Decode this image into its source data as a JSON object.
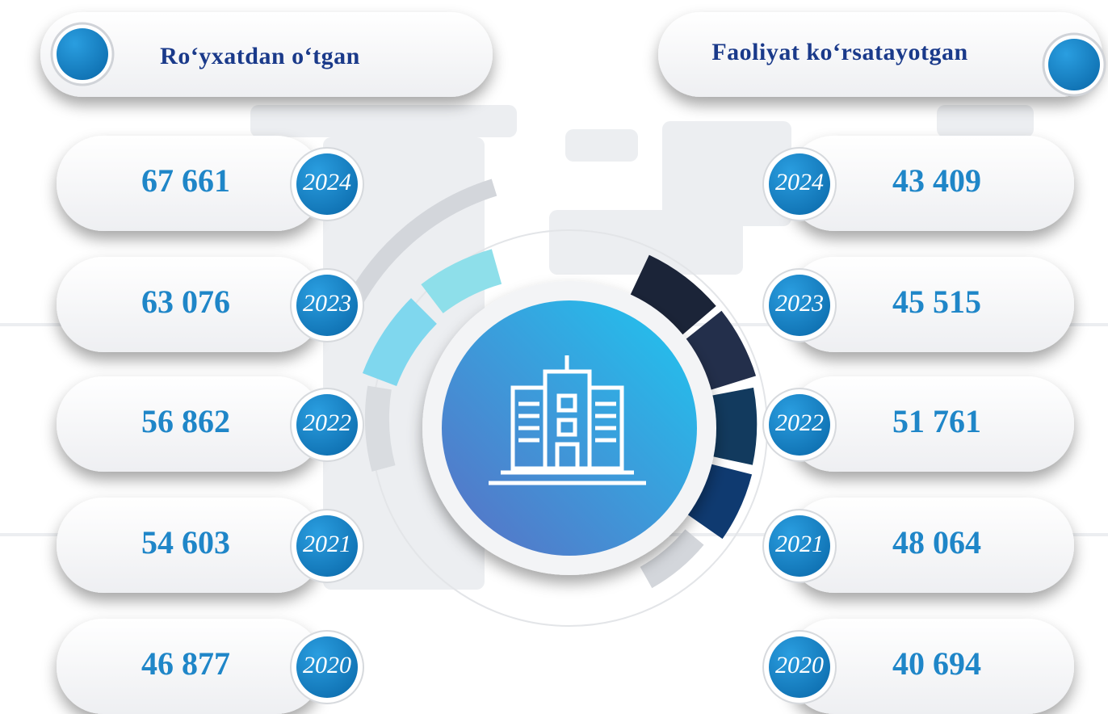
{
  "left": {
    "title": "Ro‘yxatdan o‘tgan",
    "items": [
      {
        "value": "67 661",
        "year": "2024"
      },
      {
        "value": "63 076",
        "year": "2023"
      },
      {
        "value": "56 862",
        "year": "2022"
      },
      {
        "value": "54 603",
        "year": "2021"
      },
      {
        "value": "46 877",
        "year": "2020"
      }
    ]
  },
  "right": {
    "title": "Faoliyat ko‘rsatayotgan",
    "items": [
      {
        "value": "43 409",
        "year": "2024"
      },
      {
        "value": "45 515",
        "year": "2023"
      },
      {
        "value": "51 761",
        "year": "2022"
      },
      {
        "value": "48 064",
        "year": "2021"
      },
      {
        "value": "40 694",
        "year": "2020"
      }
    ]
  }
}
